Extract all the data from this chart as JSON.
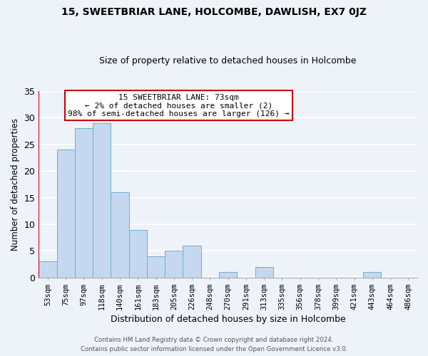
{
  "title": "15, SWEETBRIAR LANE, HOLCOMBE, DAWLISH, EX7 0JZ",
  "subtitle": "Size of property relative to detached houses in Holcombe",
  "xlabel": "Distribution of detached houses by size in Holcombe",
  "ylabel": "Number of detached properties",
  "bar_labels": [
    "53sqm",
    "75sqm",
    "97sqm",
    "118sqm",
    "140sqm",
    "161sqm",
    "183sqm",
    "205sqm",
    "226sqm",
    "248sqm",
    "270sqm",
    "291sqm",
    "313sqm",
    "335sqm",
    "356sqm",
    "378sqm",
    "399sqm",
    "421sqm",
    "443sqm",
    "464sqm",
    "486sqm"
  ],
  "bar_values": [
    3,
    24,
    28,
    29,
    16,
    9,
    4,
    5,
    6,
    0,
    1,
    0,
    2,
    0,
    0,
    0,
    0,
    0,
    1,
    0,
    0
  ],
  "bar_color": "#c5d8f0",
  "bar_edgecolor": "#6baed6",
  "highlight_color": "#cc0000",
  "annotation_title": "15 SWEETBRIAR LANE: 73sqm",
  "annotation_line1": "← 2% of detached houses are smaller (2)",
  "annotation_line2": "98% of semi-detached houses are larger (126) →",
  "annotation_box_color": "#ffffff",
  "annotation_box_edgecolor": "#cc0000",
  "ylim": [
    0,
    35
  ],
  "yticks": [
    0,
    5,
    10,
    15,
    20,
    25,
    30,
    35
  ],
  "footer1": "Contains HM Land Registry data © Crown copyright and database right 2024.",
  "footer2": "Contains public sector information licensed under the Open Government Licence v3.0.",
  "background_color": "#eef2f9",
  "grid_color": "#ffffff"
}
